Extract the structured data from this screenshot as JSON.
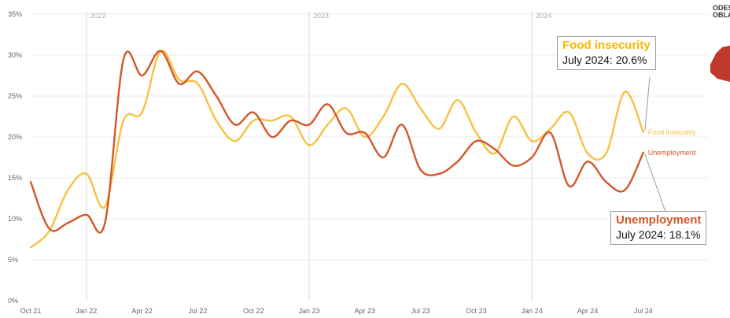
{
  "chart_data": {
    "type": "line",
    "x": [
      "Oct 21",
      "Nov 21",
      "Dec 21",
      "Jan 22",
      "Feb 22",
      "Mar 22",
      "Apr 22",
      "May 22",
      "Jun 22",
      "Jul 22",
      "Aug 22",
      "Sep 22",
      "Oct 22",
      "Nov 22",
      "Dec 22",
      "Jan 23",
      "Feb 23",
      "Mar 23",
      "Apr 23",
      "May 23",
      "Jun 23",
      "Jul 23",
      "Aug 23",
      "Sep 23",
      "Oct 23",
      "Nov 23",
      "Dec 23",
      "Jan 24",
      "Feb 24",
      "Mar 24",
      "Apr 24",
      "May 24",
      "Jun 24",
      "Jul 24"
    ],
    "xticks": [
      "Oct 21",
      "Jan 22",
      "Apr 22",
      "Jul 22",
      "Oct 22",
      "Jan 23",
      "Apr 23",
      "Jul 23",
      "Oct 23",
      "Jan 24",
      "Apr 24",
      "Jul 24"
    ],
    "yticks": [
      "0%",
      "5%",
      "10%",
      "15%",
      "20%",
      "25%",
      "30%",
      "35%"
    ],
    "ylim": [
      0,
      35
    ],
    "year_markers": [
      "2022",
      "2023",
      "2024"
    ],
    "series": [
      {
        "name": "Food insecurity",
        "color": "#f5c242",
        "values": [
          6.5,
          8.5,
          13.5,
          15.5,
          11.5,
          22.0,
          23.0,
          30.5,
          27.0,
          26.5,
          22.0,
          19.5,
          22.0,
          22.0,
          22.5,
          19.0,
          21.5,
          23.5,
          20.0,
          22.5,
          26.5,
          23.5,
          21.0,
          24.5,
          20.5,
          18.0,
          22.5,
          19.5,
          21.0,
          23.0,
          18.0,
          18.0,
          25.5,
          20.6
        ]
      },
      {
        "name": "Unemployment",
        "color": "#d4562a",
        "values": [
          14.5,
          8.8,
          9.5,
          10.5,
          9.5,
          29.5,
          27.5,
          30.5,
          26.5,
          28.0,
          25.0,
          21.5,
          23.0,
          20.0,
          22.0,
          21.5,
          24.0,
          20.5,
          20.5,
          17.5,
          21.5,
          16.0,
          15.5,
          17.0,
          19.5,
          18.5,
          16.5,
          17.5,
          20.5,
          14.0,
          17.0,
          14.5,
          13.5,
          18.1
        ]
      }
    ]
  },
  "callouts": {
    "food": {
      "title": "Food insecurity",
      "value": "July 2024: 20.6%",
      "color": "#f5b800"
    },
    "unemployment": {
      "title": "Unemployment",
      "value": "July 2024: 18.1%",
      "color": "#d4562a"
    }
  },
  "region": {
    "line1": "ODESI",
    "line2": "OBLA",
    "map_color": "#c0392b"
  }
}
